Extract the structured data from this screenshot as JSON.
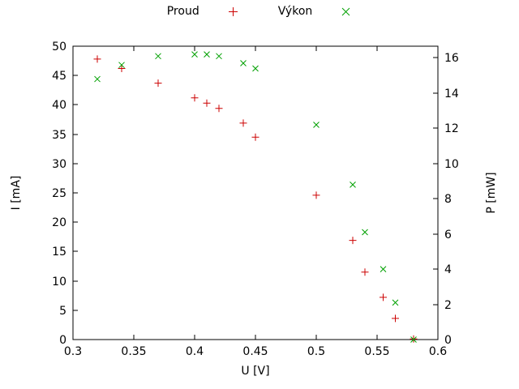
{
  "chart_data": {
    "type": "scatter",
    "title": "",
    "xlabel": "U [V]",
    "ylabel_left": "I [mA]",
    "ylabel_right": "P [mW]",
    "xlim": [
      0.3,
      0.6
    ],
    "ylim_left": [
      0,
      50
    ],
    "ylim_right": [
      0,
      16.667
    ],
    "x_ticks": [
      0.3,
      0.35,
      0.4,
      0.45,
      0.5,
      0.55,
      0.6
    ],
    "x_tick_labels": [
      "0.3",
      "0.35",
      "0.4",
      "0.45",
      "0.5",
      "0.55",
      "0.6"
    ],
    "y_left_ticks": [
      0,
      5,
      10,
      15,
      20,
      25,
      30,
      35,
      40,
      45,
      50
    ],
    "y_left_tick_labels": [
      "0",
      "5",
      "10",
      "15",
      "20",
      "25",
      "30",
      "35",
      "40",
      "45",
      "50"
    ],
    "y_right_ticks": [
      0,
      2,
      4,
      6,
      8,
      10,
      12,
      14,
      16
    ],
    "y_right_tick_labels": [
      "0",
      "2",
      "4",
      "6",
      "8",
      "10",
      "12",
      "14",
      "16"
    ],
    "grid": false,
    "legend_position": "top-center",
    "x": [
      0.32,
      0.34,
      0.37,
      0.4,
      0.41,
      0.42,
      0.44,
      0.45,
      0.5,
      0.53,
      0.54,
      0.555,
      0.565,
      0.58
    ],
    "series": [
      {
        "id": "proud",
        "name": "Proud",
        "axis": "left",
        "marker": "plus",
        "color": "#cc0000",
        "values": [
          47.8,
          46.2,
          43.7,
          41.2,
          40.3,
          39.4,
          36.9,
          34.5,
          24.6,
          16.9,
          11.5,
          7.2,
          3.6,
          0.1
        ]
      },
      {
        "id": "vykon",
        "name": "Výkon",
        "axis": "right",
        "marker": "cross",
        "color": "#00a000",
        "values": [
          14.8,
          15.6,
          16.1,
          16.2,
          16.2,
          16.1,
          15.7,
          15.4,
          12.2,
          8.8,
          6.1,
          4.0,
          2.1,
          0.0
        ]
      }
    ]
  },
  "colors": {
    "background": "#ffffff",
    "axis": "#000000",
    "text": "#000000"
  }
}
